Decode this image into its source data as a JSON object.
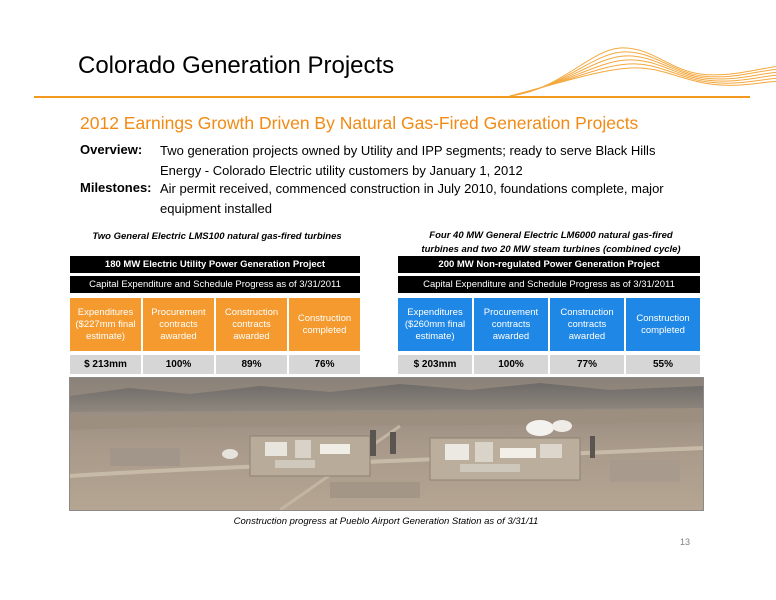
{
  "title": "Colorado Generation Projects",
  "subtitle": "2012 Earnings Growth Driven By Natural Gas-Fired Generation Projects",
  "overview": {
    "label": "Overview:",
    "text": "Two generation projects owned by Utility and IPP segments; ready to serve Black Hills Energy - Colorado Electric utility customers by January 1, 2012"
  },
  "milestones": {
    "label": "Milestones:",
    "text": "Air permit received, commenced construction in July 2010, foundations complete, major equipment installed"
  },
  "left_project": {
    "caption": "Two General Electric LMS100 natural gas-fired turbines",
    "header": "180 MW Electric Utility Power Generation Project",
    "subheader": "Capital Expenditure and Schedule Progress as of 3/31/2011",
    "cells": [
      [
        "Expenditures",
        "($227mm final",
        "estimate)"
      ],
      [
        "Procurement",
        "contracts",
        "awarded"
      ],
      [
        "Construction",
        "contracts",
        "awarded"
      ],
      [
        "Construction",
        "completed"
      ]
    ],
    "values": [
      "$ 213mm",
      "100%",
      "89%",
      "76%"
    ]
  },
  "right_project": {
    "caption_line1": "Four 40 MW General Electric LM6000 natural gas-fired",
    "caption_line2": "turbines and two 20 MW steam turbines (combined cycle)",
    "header": "200 MW Non-regulated Power Generation Project",
    "subheader": "Capital Expenditure and Schedule Progress as of 3/31/2011",
    "cells": [
      [
        "Expenditures",
        "($260mm final",
        "estimate)"
      ],
      [
        "Procurement",
        "contracts",
        "awarded"
      ],
      [
        "Construction",
        "contracts",
        "awarded"
      ],
      [
        "Construction",
        "completed"
      ]
    ],
    "values": [
      "$ 203mm",
      "100%",
      "77%",
      "55%"
    ]
  },
  "photo_caption": "Construction progress at Pueblo Airport Generation Station as of 3/31/11",
  "page_number": "13",
  "colors": {
    "accent_orange": "#f28a14",
    "cell_orange": "#f49a2e",
    "cell_blue": "#1f87e6",
    "value_gray": "#d6d6d6",
    "bar_black": "#000000"
  }
}
